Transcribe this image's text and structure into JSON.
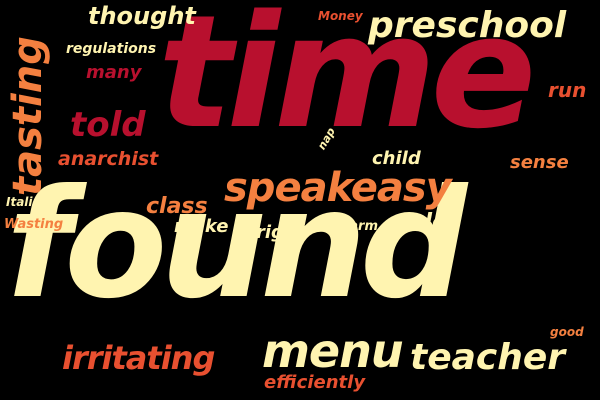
{
  "colors": {
    "background": "#000000",
    "cream": "#FFF4B0",
    "crimson": "#B8102E",
    "orange": "#F48040",
    "red_orange": "#E85030"
  },
  "words": [
    {
      "text": "time",
      "color": "crimson",
      "rotation": 0
    },
    {
      "text": "found",
      "color": "cream",
      "rotation": 0
    },
    {
      "text": "speakeasy",
      "color": "orange",
      "rotation": 0
    },
    {
      "text": "preschool",
      "color": "cream",
      "rotation": 0
    },
    {
      "text": "tasting",
      "color": "orange",
      "rotation": -90
    },
    {
      "text": "thought",
      "color": "cream",
      "rotation": 0
    },
    {
      "text": "told",
      "color": "crimson",
      "rotation": 0
    },
    {
      "text": "anarchist",
      "color": "red_orange",
      "rotation": 0
    },
    {
      "text": "menu",
      "color": "cream",
      "rotation": 0
    },
    {
      "text": "teacher",
      "color": "cream",
      "rotation": 0
    },
    {
      "text": "irritating",
      "color": "red_orange",
      "rotation": 0
    },
    {
      "text": "efficiently",
      "color": "red_orange",
      "rotation": 0
    },
    {
      "text": "class",
      "color": "orange",
      "rotation": 0
    },
    {
      "text": "make",
      "color": "cream",
      "rotation": 0
    },
    {
      "text": "rigid",
      "color": "cream",
      "rotation": 0
    },
    {
      "text": "harm",
      "color": "cream",
      "rotation": 0
    },
    {
      "text": "rules",
      "color": "cream",
      "rotation": 0
    },
    {
      "text": "child",
      "color": "cream",
      "rotation": 0
    },
    {
      "text": "sense",
      "color": "orange",
      "rotation": 0
    },
    {
      "text": "run",
      "color": "red_orange",
      "rotation": 0
    },
    {
      "text": "Money",
      "color": "red_orange",
      "rotation": 0
    },
    {
      "text": "regulations",
      "color": "cream",
      "rotation": 0
    },
    {
      "text": "many",
      "color": "crimson",
      "rotation": 0
    },
    {
      "text": "nap",
      "color": "cream",
      "rotation": -60
    },
    {
      "text": "Italian",
      "color": "cream",
      "rotation": 0
    },
    {
      "text": "Wasting",
      "color": "orange",
      "rotation": 0
    },
    {
      "text": "good",
      "color": "orange",
      "rotation": 0
    }
  ]
}
